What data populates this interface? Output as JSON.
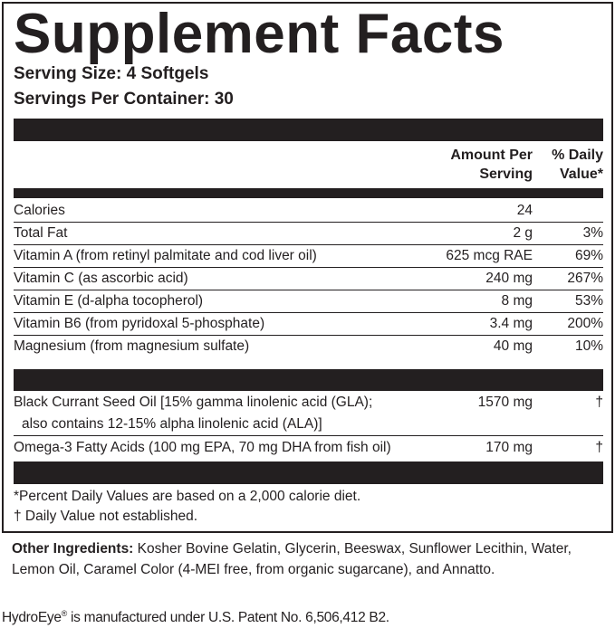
{
  "title": "Supplement Facts",
  "serving_size": "Serving Size: 4 Softgels",
  "servings_per_container": "Servings Per Container: 30",
  "header": {
    "amount_line1": "Amount Per",
    "amount_line2": "Serving",
    "dv_line1": "% Daily",
    "dv_line2": "Value*"
  },
  "nutrients": [
    {
      "name": "Calories",
      "amount": "24",
      "dv": ""
    },
    {
      "name": "Total Fat",
      "amount": "2 g",
      "dv": "3%"
    },
    {
      "name": "Vitamin A (from retinyl palmitate and cod liver oil)",
      "amount": "625 mcg RAE",
      "dv": "69%"
    },
    {
      "name": "Vitamin C (as ascorbic acid)",
      "amount": "240 mg",
      "dv": "267%"
    },
    {
      "name": "Vitamin E (d-alpha tocopherol)",
      "amount": "8 mg",
      "dv": "53%"
    },
    {
      "name": "Vitamin B6 (from pyridoxal 5-phosphate)",
      "amount": "3.4 mg",
      "dv": "200%"
    },
    {
      "name": "Magnesium (from magnesium sulfate)",
      "amount": "40 mg",
      "dv": "10%"
    }
  ],
  "other_nutrients": [
    {
      "name_line1": "Black Currant Seed Oil [15% gamma linolenic acid (GLA);",
      "name_line2": "also contains 12-15% alpha linolenic acid (ALA)]",
      "amount": "1570 mg",
      "dv": "†"
    },
    {
      "name_line1": "Omega-3 Fatty Acids (100 mg EPA, 70 mg DHA from fish oil)",
      "amount": "170 mg",
      "dv": "†"
    }
  ],
  "footnotes": [
    "*Percent Daily Values are based on a 2,000 calorie diet.",
    "† Daily Value not established."
  ],
  "other_ingredients": {
    "label": "Other Ingredients:",
    "text": " Kosher Bovine Gelatin, Glycerin, Beeswax, Sunflower Lecithin, Water, Lemon Oil, Caramel Color (4-MEI free, from organic sugarcane), and Annatto."
  },
  "patent": {
    "brand": "HydroEye",
    "mark": "®",
    "text": " is manufactured under U.S. Patent No. 6,506,412 B2."
  }
}
